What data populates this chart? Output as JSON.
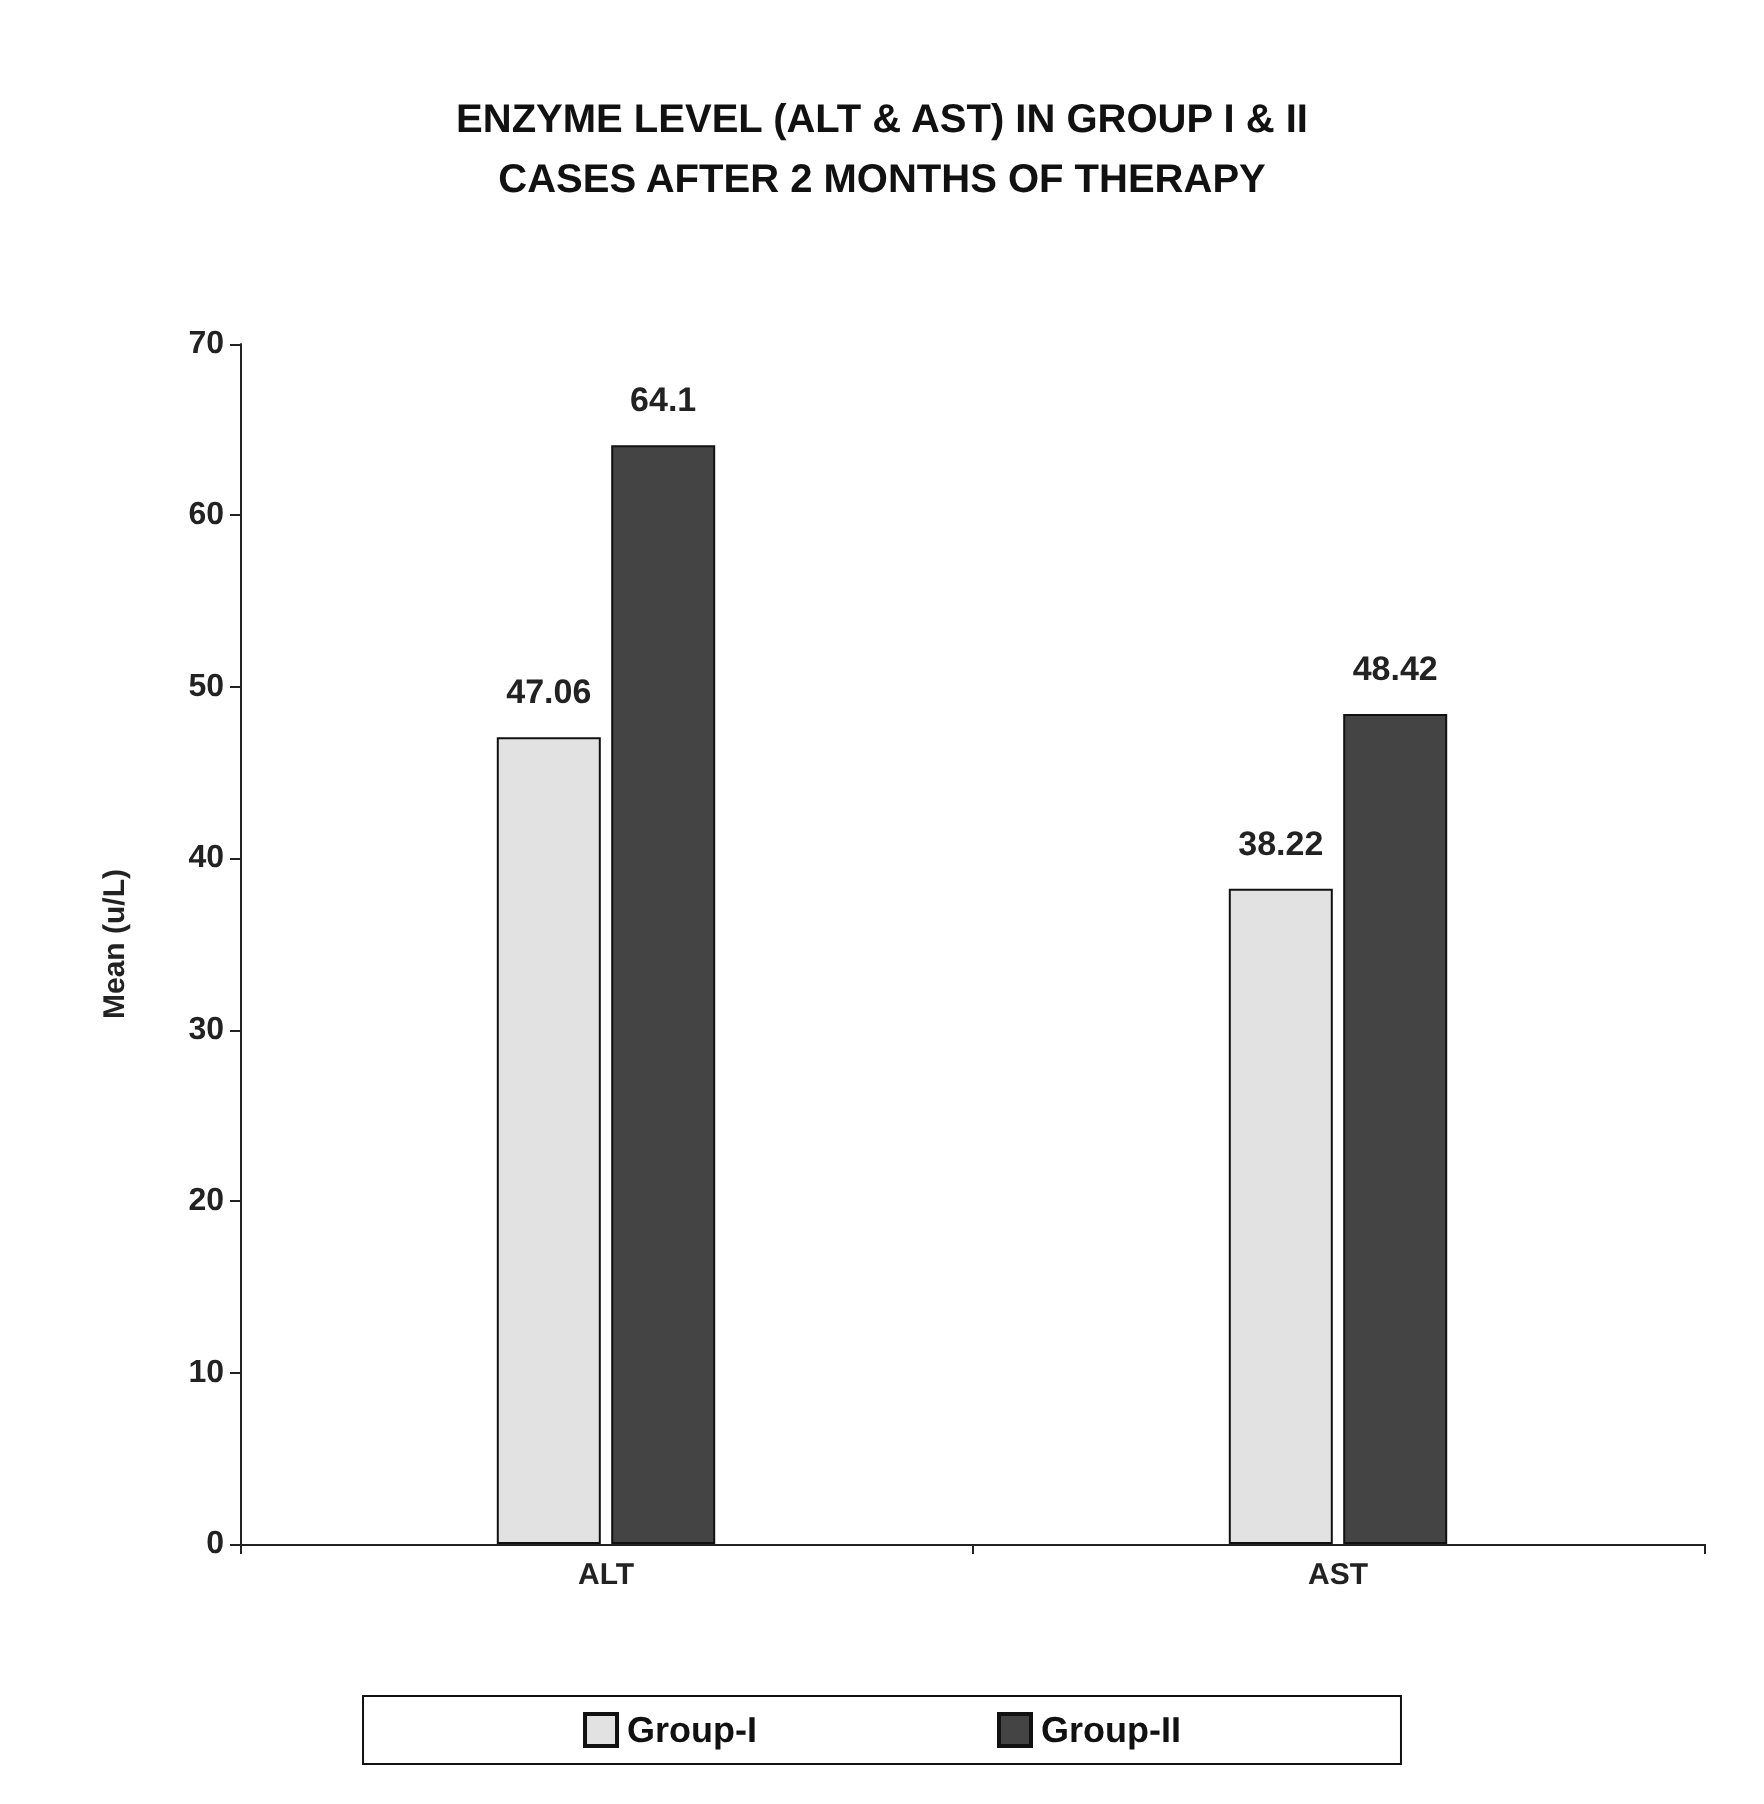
{
  "chart_data": {
    "type": "bar",
    "title": "ENZYME LEVEL (ALT & AST) IN GROUP I & II\nCASES AFTER 2 MONTHS OF THERAPY",
    "ylabel": "Mean (u/L)",
    "categories": [
      "ALT",
      "AST"
    ],
    "series": [
      {
        "name": "Group-I",
        "color": "#e2e2e2",
        "values": [
          47.06,
          38.22
        ]
      },
      {
        "name": "Group-II",
        "color": "#444444",
        "values": [
          64.1,
          48.42
        ]
      }
    ],
    "ylim": [
      0,
      70
    ],
    "yticks": [
      0,
      10,
      20,
      30,
      40,
      50,
      60,
      70
    ],
    "grid": false,
    "legend": "bottom",
    "data_labels": true
  }
}
